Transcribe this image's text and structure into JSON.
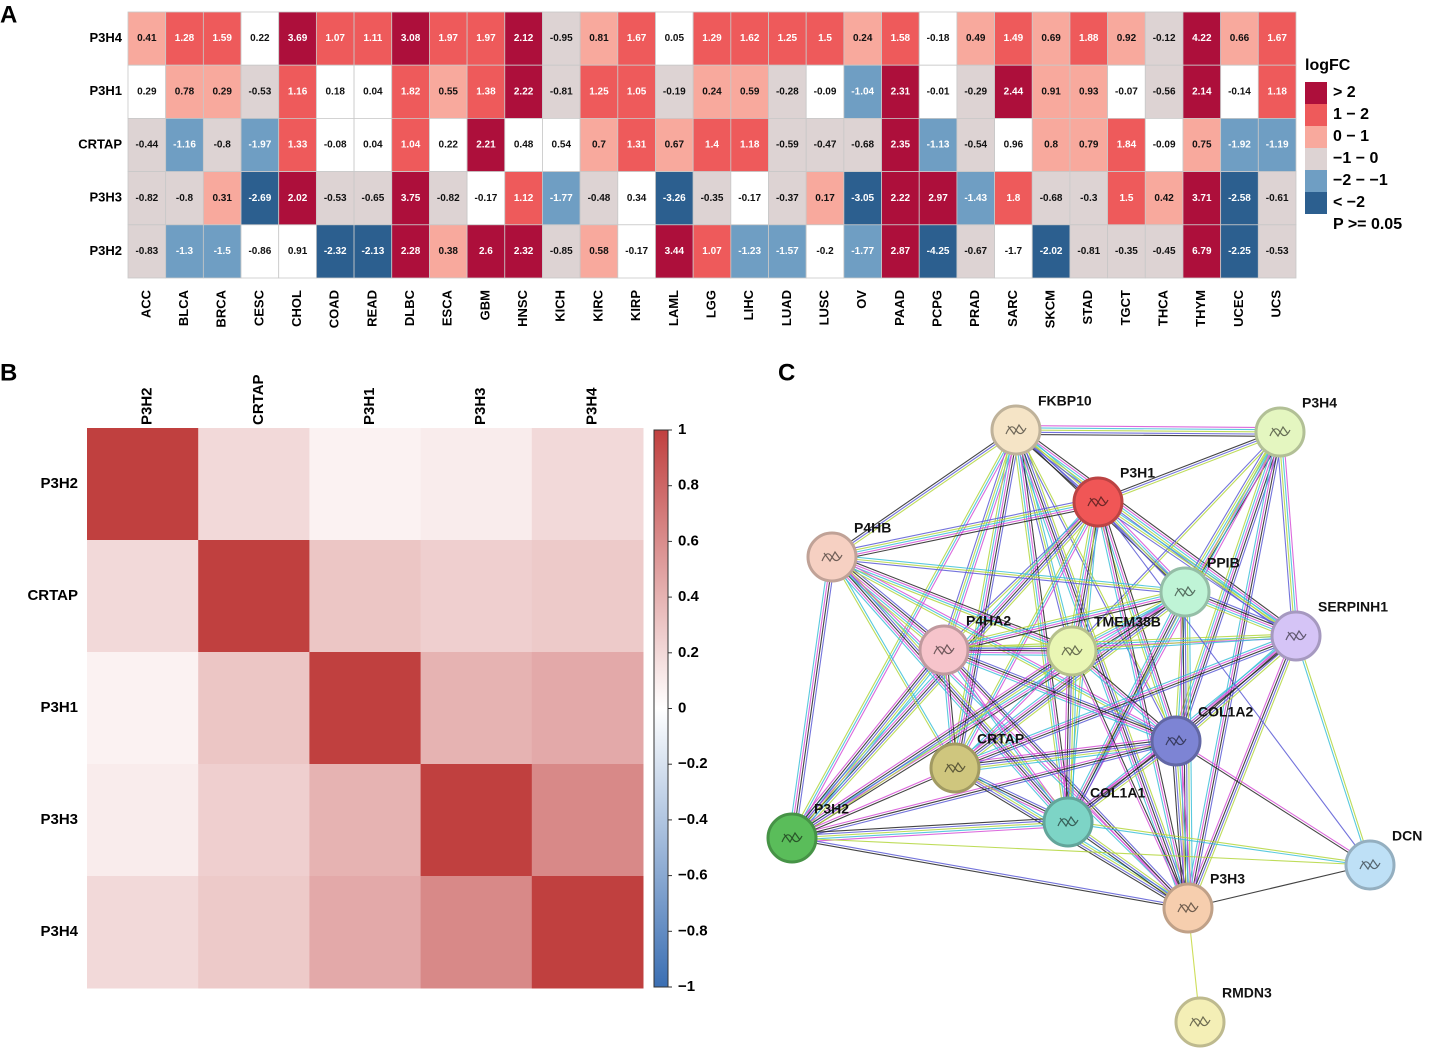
{
  "panels": {
    "a": "A",
    "b": "B",
    "c": "C"
  },
  "chart_data": [
    {
      "type": "category-heatmap",
      "categories": [
        "ACC",
        "BLCA",
        "BRCA",
        "CESC",
        "CHOL",
        "COAD",
        "READ",
        "DLBC",
        "ESCA",
        "GBM",
        "HNSC",
        "KICH",
        "KIRC",
        "KIRP",
        "LAML",
        "LGG",
        "LIHC",
        "LUAD",
        "LUSC",
        "OV",
        "PAAD",
        "PCPG",
        "PRAD",
        "SARC",
        "SKCM",
        "STAD",
        "TGCT",
        "THCA",
        "THYM",
        "UCEC",
        "UCS"
      ],
      "series": [
        {
          "name": "P3H4",
          "values": [
            0.41,
            1.28,
            1.59,
            0.22,
            3.69,
            1.07,
            1.11,
            3.08,
            1.97,
            1.97,
            2.12,
            -0.95,
            0.81,
            1.67,
            0.05,
            1.29,
            1.62,
            1.25,
            1.5,
            0.24,
            1.58,
            -0.18,
            0.49,
            1.49,
            0.69,
            1.88,
            0.92,
            -0.12,
            4.22,
            0.66,
            1.67
          ],
          "significant": [
            true,
            true,
            true,
            false,
            true,
            true,
            true,
            true,
            true,
            true,
            true,
            true,
            true,
            true,
            false,
            true,
            true,
            true,
            true,
            true,
            true,
            false,
            true,
            true,
            true,
            true,
            true,
            true,
            true,
            true,
            true
          ]
        },
        {
          "name": "P3H1",
          "values": [
            0.29,
            0.78,
            0.29,
            -0.53,
            1.16,
            0.18,
            0.04,
            1.82,
            0.55,
            1.38,
            2.22,
            -0.81,
            1.25,
            1.05,
            -0.19,
            0.24,
            0.59,
            -0.28,
            -0.09,
            -1.04,
            2.31,
            -0.01,
            -0.29,
            2.44,
            0.91,
            0.93,
            -0.07,
            -0.56,
            2.14,
            -0.14,
            1.18
          ],
          "significant": [
            false,
            true,
            true,
            true,
            true,
            false,
            false,
            true,
            true,
            true,
            true,
            true,
            true,
            true,
            true,
            true,
            true,
            true,
            false,
            true,
            true,
            false,
            true,
            true,
            true,
            true,
            false,
            true,
            true,
            false,
            true
          ]
        },
        {
          "name": "CRTAP",
          "values": [
            -0.44,
            -1.16,
            -0.8,
            -1.97,
            1.33,
            -0.08,
            0.04,
            1.04,
            0.22,
            2.21,
            0.48,
            0.54,
            0.7,
            1.31,
            0.67,
            1.4,
            1.18,
            -0.59,
            -0.47,
            -0.68,
            2.35,
            -1.13,
            -0.54,
            0.96,
            0.8,
            0.79,
            1.84,
            -0.09,
            0.75,
            -1.92,
            -1.19
          ],
          "significant": [
            true,
            true,
            true,
            true,
            true,
            false,
            false,
            true,
            false,
            true,
            false,
            false,
            true,
            true,
            true,
            true,
            true,
            true,
            true,
            true,
            true,
            true,
            true,
            false,
            true,
            true,
            true,
            false,
            true,
            true,
            true
          ]
        },
        {
          "name": "P3H3",
          "values": [
            -0.82,
            -0.8,
            0.31,
            -2.69,
            2.02,
            -0.53,
            -0.65,
            3.75,
            -0.82,
            -0.17,
            1.12,
            -1.77,
            -0.48,
            0.34,
            -3.26,
            -0.35,
            -0.17,
            -0.37,
            0.17,
            -3.05,
            2.22,
            2.97,
            -1.43,
            1.8,
            -0.68,
            -0.3,
            1.5,
            0.42,
            3.71,
            -2.58,
            -0.61
          ],
          "significant": [
            true,
            true,
            true,
            true,
            true,
            true,
            true,
            true,
            true,
            false,
            true,
            true,
            true,
            false,
            true,
            true,
            false,
            true,
            true,
            true,
            true,
            true,
            true,
            true,
            true,
            true,
            true,
            true,
            true,
            true,
            true
          ]
        },
        {
          "name": "P3H2",
          "values": [
            -0.83,
            -1.3,
            -1.5,
            -0.86,
            0.91,
            -2.32,
            -2.13,
            2.28,
            0.38,
            2.6,
            2.32,
            -0.85,
            0.58,
            -0.17,
            3.44,
            1.07,
            -1.23,
            -1.57,
            -0.2,
            -1.77,
            2.87,
            -4.25,
            -0.67,
            -1.7,
            -2.02,
            -0.81,
            -0.35,
            -0.45,
            6.79,
            -2.25,
            -0.53
          ],
          "significant": [
            true,
            true,
            true,
            false,
            false,
            true,
            true,
            true,
            true,
            true,
            true,
            true,
            true,
            false,
            true,
            true,
            true,
            true,
            false,
            true,
            true,
            true,
            true,
            false,
            true,
            true,
            true,
            true,
            true,
            true,
            true
          ]
        }
      ],
      "legend": {
        "title": "logFC",
        "items": [
          {
            "label": "> 2",
            "color": "#ad0f3b",
            "min": 2,
            "max": null
          },
          {
            "label": "1 − 2",
            "color": "#ee5a5b",
            "min": 1,
            "max": 2
          },
          {
            "label": "0 − 1",
            "color": "#f8a99d",
            "min": 0,
            "max": 1
          },
          {
            "label": "−1 − 0",
            "color": "#ddd3d3",
            "min": -1,
            "max": 0
          },
          {
            "label": "−2 − −1",
            "color": "#6f9ec3",
            "min": -2,
            "max": -1
          },
          {
            "label": "< −2",
            "color": "#2c5f8f",
            "min": null,
            "max": -2
          },
          {
            "label": "P >= 0.05",
            "color": "#ffffff",
            "min": null,
            "max": null
          }
        ]
      }
    },
    {
      "type": "correlation-heatmap",
      "categories": [
        "P3H2",
        "CRTAP",
        "P3H1",
        "P3H3",
        "P3H4"
      ],
      "series": [
        {
          "name": "P3H2",
          "values": [
            1,
            0.2,
            0.07,
            0.1,
            0.2
          ]
        },
        {
          "name": "CRTAP",
          "values": [
            0.2,
            1,
            0.3,
            0.25,
            0.28
          ]
        },
        {
          "name": "P3H1",
          "values": [
            0.07,
            0.3,
            1,
            0.4,
            0.45
          ]
        },
        {
          "name": "P3H3",
          "values": [
            0.1,
            0.25,
            0.4,
            1,
            0.62
          ]
        },
        {
          "name": "P3H4",
          "values": [
            0.2,
            0.28,
            0.45,
            0.62,
            1
          ]
        }
      ],
      "zlim": [
        -1,
        1
      ],
      "zticks": [
        1,
        0.8,
        0.6,
        0.4,
        0.2,
        0,
        {
          "value": -0.2,
          "label": "−0.2"
        },
        {
          "value": -0.4,
          "label": "−0.4"
        },
        {
          "value": -0.6,
          "label": "−0.6"
        },
        {
          "value": -0.8,
          "label": "−0.8"
        },
        {
          "value": -1,
          "label": "−1"
        }
      ],
      "colors": {
        "low": "#3b6fb3",
        "mid": "#ffffff",
        "high": "#c0403f"
      }
    }
  ],
  "network": {
    "nodes": [
      {
        "label": "FKBP10",
        "color": "#f5e4c6"
      },
      {
        "label": "P3H4",
        "color": "#e4f6c0"
      },
      {
        "label": "P3H1",
        "color": "#f05656"
      },
      {
        "label": "P4HB",
        "color": "#f6d0c2"
      },
      {
        "label": "PPIB",
        "color": "#bff4d6"
      },
      {
        "label": "SERPINH1",
        "color": "#d5c4f6"
      },
      {
        "label": "P4HA2",
        "color": "#f6c4cb"
      },
      {
        "label": "TMEM38B",
        "color": "#e9f6b4"
      },
      {
        "label": "COL1A2",
        "color": "#7d84d4"
      },
      {
        "label": "CRTAP",
        "color": "#cfc67e"
      },
      {
        "label": "COL1A1",
        "color": "#7dd4c6"
      },
      {
        "label": "P3H2",
        "color": "#5abd5a"
      },
      {
        "label": "DCN",
        "color": "#bee0f6"
      },
      {
        "label": "P3H3",
        "color": "#f6ceae"
      },
      {
        "label": "RMDN3",
        "color": "#f4efb6"
      }
    ]
  }
}
